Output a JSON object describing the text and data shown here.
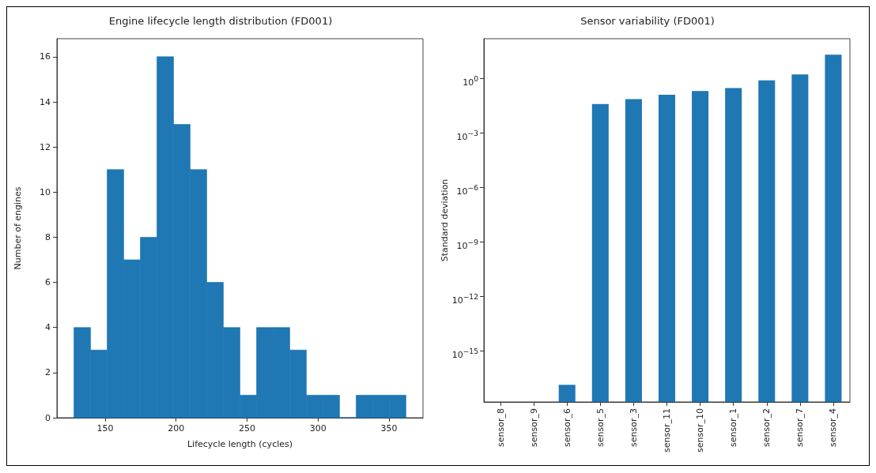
{
  "chart_data": [
    {
      "type": "histogram",
      "title": "Engine lifecycle length distribution (FD001)",
      "xlabel": "Lifecycle length (cycles)",
      "ylabel": "Number of engines",
      "color": "#1f77b4",
      "bins": [
        128,
        139.7,
        151.4,
        163.1,
        174.8,
        186.5,
        198.2,
        209.9,
        221.6,
        233.3,
        245,
        256.7,
        268.4,
        280.1,
        291.8,
        303.5,
        315.2,
        326.9,
        338.6,
        350.3,
        362
      ],
      "values": [
        4,
        3,
        11,
        7,
        8,
        16,
        13,
        11,
        6,
        4,
        1,
        4,
        4,
        3,
        1,
        1,
        0,
        1,
        1,
        1
      ],
      "xlim": [
        116,
        374
      ],
      "xticks": [
        150,
        200,
        250,
        300,
        350
      ],
      "ylim": [
        0,
        16.8
      ],
      "yticks": [
        0,
        2,
        4,
        6,
        8,
        10,
        12,
        14,
        16
      ],
      "grid": false
    },
    {
      "type": "bar",
      "title": "Sensor variability (FD001)",
      "ylabel": "Standard deviation",
      "color": "#1f77b4",
      "log": "y",
      "categories": [
        "sensor_8",
        "sensor_9",
        "sensor_6",
        "sensor_5",
        "sensor_3",
        "sensor_11",
        "sensor_10",
        "sensor_1",
        "sensor_2",
        "sensor_7",
        "sensor_4"
      ],
      "values": [
        null,
        null,
        1.4e-17,
        0.04,
        0.075,
        0.13,
        0.21,
        0.3,
        0.8,
        1.7,
        21
      ],
      "ylim": [
        1.6e-18,
        158
      ],
      "yticks": [
        {
          "value": 1e-15,
          "label": "10$^{−15}$"
        },
        {
          "value": 1e-12,
          "label": "10$^{−12}$"
        },
        {
          "value": 1e-09,
          "label": "10$^{−9}$"
        },
        {
          "value": 1e-06,
          "label": "10$^{−6}$"
        },
        {
          "value": 0.001,
          "label": "10$^{−3}$"
        },
        {
          "value": 1,
          "label": "10$^{0}$"
        }
      ],
      "grid": false
    }
  ]
}
